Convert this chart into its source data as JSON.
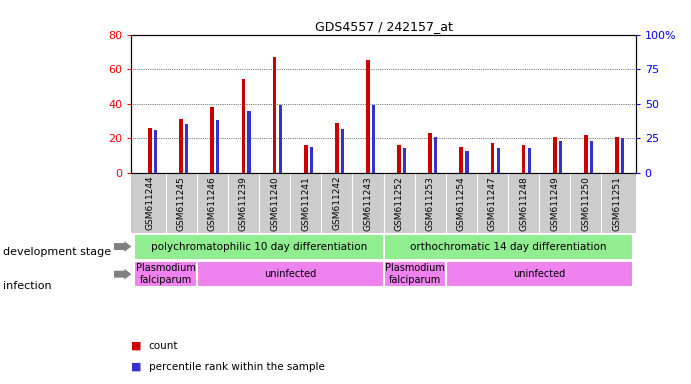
{
  "title": "GDS4557 / 242157_at",
  "samples": [
    "GSM611244",
    "GSM611245",
    "GSM611246",
    "GSM611239",
    "GSM611240",
    "GSM611241",
    "GSM611242",
    "GSM611243",
    "GSM611252",
    "GSM611253",
    "GSM611254",
    "GSM611247",
    "GSM611248",
    "GSM611249",
    "GSM611250",
    "GSM611251"
  ],
  "counts": [
    26,
    31,
    38,
    54,
    67,
    16,
    29,
    65,
    16,
    23,
    15,
    17,
    16,
    21,
    22,
    21
  ],
  "percentiles": [
    31,
    35,
    38,
    45,
    49,
    19,
    32,
    49,
    18,
    26,
    16,
    18,
    18,
    23,
    23,
    25
  ],
  "left_ylim": [
    0,
    80
  ],
  "right_ylim": [
    0,
    100
  ],
  "left_yticks": [
    0,
    20,
    40,
    60,
    80
  ],
  "right_yticks": [
    0,
    25,
    50,
    75,
    100
  ],
  "right_yticklabels": [
    "0",
    "25",
    "50",
    "75",
    "100%"
  ],
  "bar_color": "#cc0000",
  "dot_color": "#3333cc",
  "tick_bg_color": "#cccccc",
  "dev_stage_color": "#90ee90",
  "infection_color": "#ee82ee",
  "dev_stage_groups": [
    {
      "label": "polychromatophilic 10 day differentiation",
      "start": 0,
      "end": 8
    },
    {
      "label": "orthochromatic 14 day differentiation",
      "start": 8,
      "end": 16
    }
  ],
  "infection_groups": [
    {
      "label": "Plasmodium\nfalciparum",
      "start": 0,
      "end": 2
    },
    {
      "label": "uninfected",
      "start": 2,
      "end": 8
    },
    {
      "label": "Plasmodium\nfalciparum",
      "start": 8,
      "end": 10
    },
    {
      "label": "uninfected",
      "start": 10,
      "end": 16
    }
  ],
  "dev_stage_label": "development stage",
  "infection_label": "infection",
  "legend_count_label": "count",
  "legend_pct_label": "percentile rank within the sample"
}
